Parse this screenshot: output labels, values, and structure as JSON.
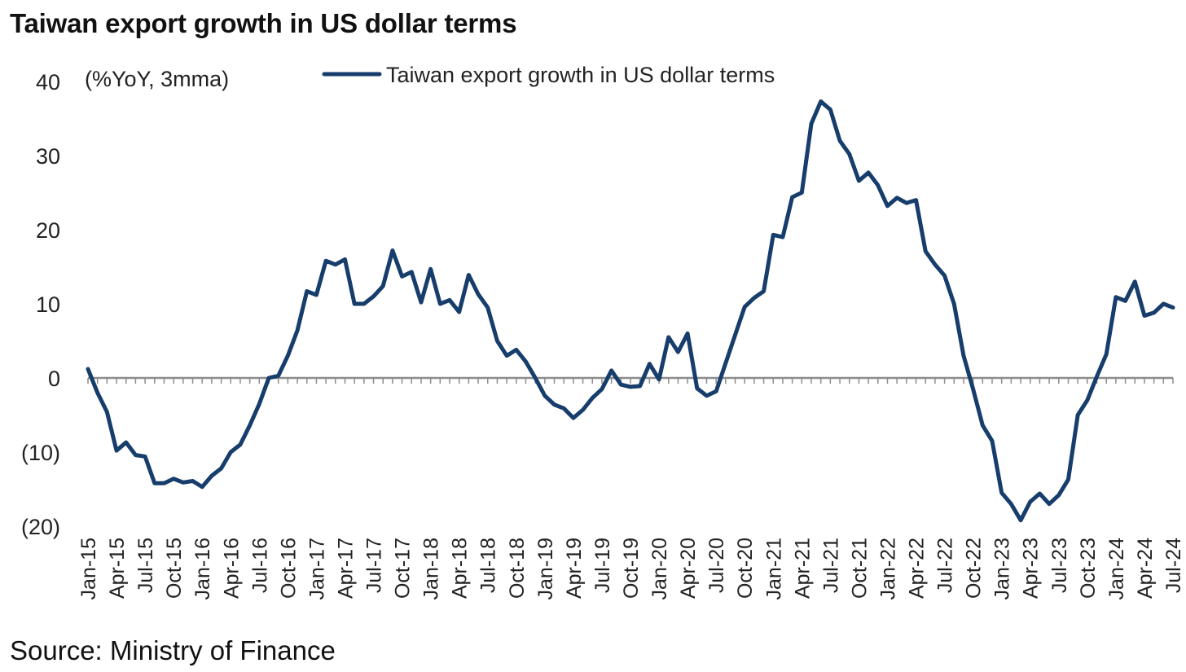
{
  "title": "Taiwan export growth in US dollar terms",
  "source": "Source: Ministry of Finance",
  "chart_data": {
    "type": "line",
    "title": "Taiwan export growth in US dollar terms",
    "unit_label": "(%YoY, 3mma)",
    "legend": "Taiwan export growth in US dollar terms",
    "legend_position": "top",
    "line_color": "#163d6b",
    "zero_line_color": "#8c8c8c",
    "grid": false,
    "ylim": [
      -20,
      40
    ],
    "yticks": [
      {
        "value": 40,
        "label": "40"
      },
      {
        "value": 30,
        "label": "30"
      },
      {
        "value": 20,
        "label": "20"
      },
      {
        "value": 10,
        "label": "10"
      },
      {
        "value": 0,
        "label": "0"
      },
      {
        "value": -10,
        "label": "(10)"
      },
      {
        "value": -20,
        "label": "(20)"
      }
    ],
    "xtick_labels": [
      "Jan-15",
      "Apr-15",
      "Jul-15",
      "Oct-15",
      "Jan-16",
      "Apr-16",
      "Jul-16",
      "Oct-16",
      "Jan-17",
      "Apr-17",
      "Jul-17",
      "Oct-17",
      "Jan-18",
      "Apr-18",
      "Jul-18",
      "Oct-18",
      "Jan-19",
      "Apr-19",
      "Jul-19",
      "Oct-19",
      "Jan-20",
      "Apr-20",
      "Jul-20",
      "Oct-20",
      "Jan-21",
      "Apr-21",
      "Jul-21",
      "Oct-21",
      "Jan-22",
      "Apr-22",
      "Jul-22",
      "Oct-22",
      "Jan-23",
      "Apr-23",
      "Jul-23",
      "Oct-23",
      "Jan-24",
      "Apr-24",
      "Jul-24"
    ],
    "series": [
      {
        "name": "Taiwan export growth in US dollar terms",
        "x_start": "Jan-15",
        "frequency": "monthly",
        "values": [
          1.2,
          -2.0,
          -4.6,
          -9.8,
          -8.7,
          -10.4,
          -10.6,
          -14.2,
          -14.2,
          -13.6,
          -14.1,
          -13.9,
          -14.7,
          -13.2,
          -12.2,
          -10.0,
          -9.0,
          -6.4,
          -3.5,
          0.0,
          0.3,
          3.0,
          6.4,
          11.7,
          11.2,
          15.8,
          15.3,
          16.0,
          10.0,
          10.0,
          11.0,
          12.4,
          17.2,
          13.7,
          14.3,
          10.2,
          14.7,
          10.0,
          10.5,
          8.9,
          13.9,
          11.3,
          9.5,
          5.0,
          3.0,
          3.8,
          2.2,
          0.0,
          -2.4,
          -3.6,
          -4.1,
          -5.4,
          -4.3,
          -2.7,
          -1.5,
          1.0,
          -0.9,
          -1.2,
          -1.1,
          1.9,
          -0.2,
          5.5,
          3.5,
          6.0,
          -1.4,
          -2.4,
          -1.8,
          2.0,
          5.8,
          9.6,
          10.8,
          11.7,
          19.3,
          19.0,
          24.4,
          25.0,
          34.3,
          37.3,
          36.2,
          32.0,
          30.2,
          26.6,
          27.7,
          26.0,
          23.2,
          24.3,
          23.6,
          24.0,
          17.1,
          15.3,
          13.8,
          10.0,
          3.0,
          -1.5,
          -6.4,
          -8.5,
          -15.5,
          -17.0,
          -19.2,
          -16.7,
          -15.6,
          -17.0,
          -15.8,
          -13.7,
          -5.0,
          -3.0,
          0.2,
          3.2,
          10.9,
          10.4,
          13.0,
          8.4,
          8.8,
          10.0,
          9.5
        ]
      }
    ]
  }
}
